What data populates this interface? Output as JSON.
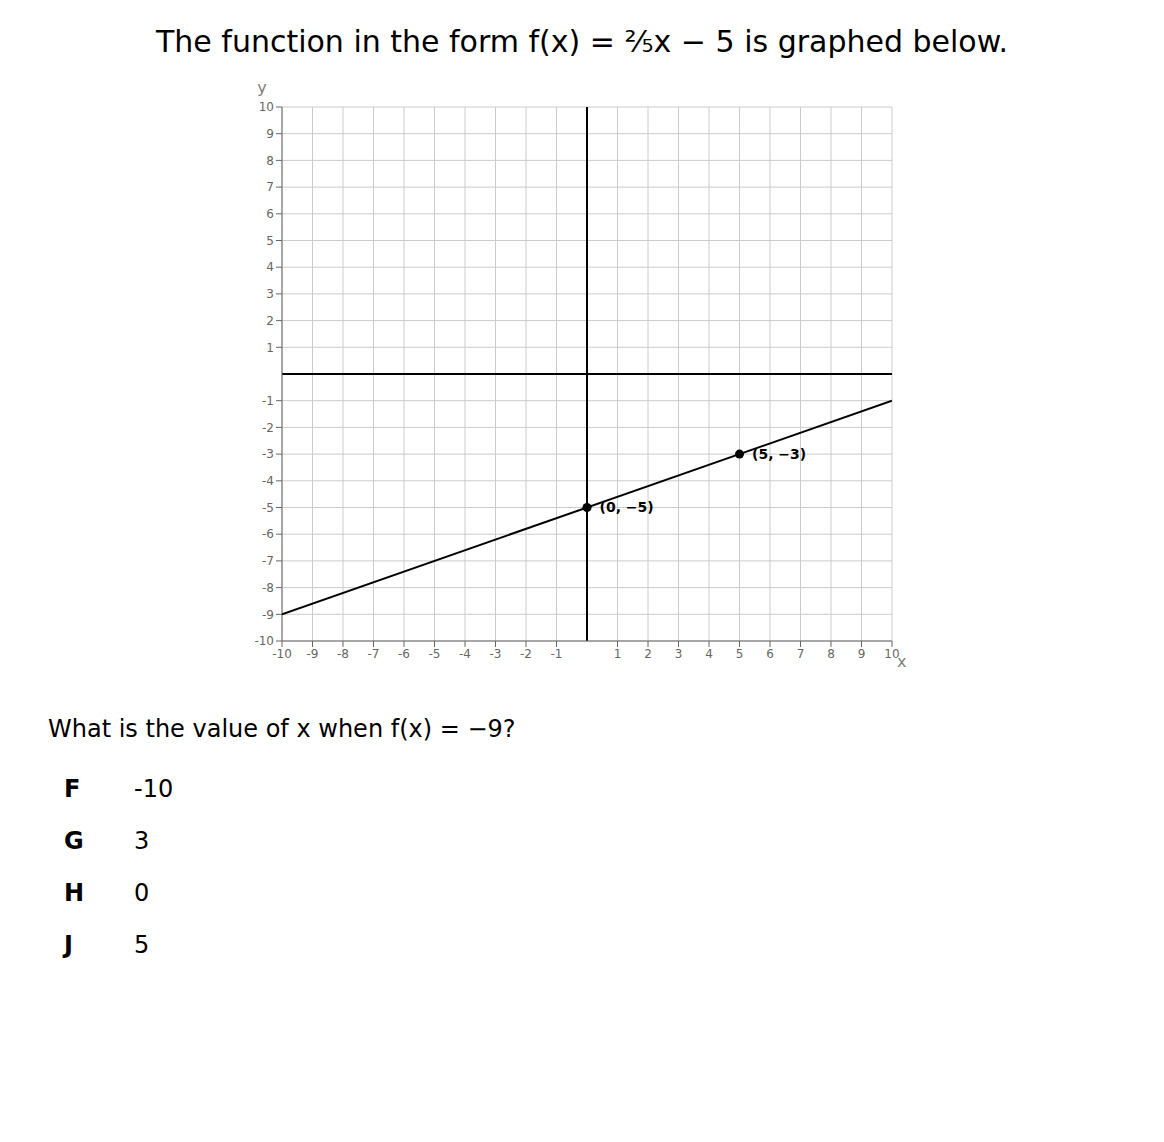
{
  "chart_data": {
    "type": "scatter",
    "title": "The function in the form f(x) = ⅖x − 5 is graphed below.",
    "question": "What is the value of x when f(x) = −9?",
    "choices": [
      {
        "letter": "F",
        "value": "-10"
      },
      {
        "letter": "G",
        "value": "3"
      },
      {
        "letter": "H",
        "value": "0"
      },
      {
        "letter": "J",
        "value": "5"
      }
    ],
    "x_label": "x",
    "y_label": "y",
    "xlim": [
      -10,
      10
    ],
    "ylim": [
      -10,
      10
    ],
    "xticks": [
      -10,
      -9,
      -8,
      -7,
      -6,
      -5,
      -4,
      -3,
      -2,
      -1,
      1,
      2,
      3,
      4,
      5,
      6,
      7,
      8,
      9,
      10
    ],
    "yticks": [
      -10,
      -9,
      -8,
      -7,
      -6,
      -5,
      -4,
      -3,
      -2,
      -1,
      1,
      2,
      3,
      4,
      5,
      6,
      7,
      8,
      9,
      10
    ],
    "grid": true,
    "series": [
      {
        "type": "line",
        "color": "#000000",
        "x": [
          -10,
          10
        ],
        "values": [
          -9,
          -1
        ]
      },
      {
        "type": "scatter",
        "color": "#000000",
        "marker": "circle",
        "x": [
          0,
          5
        ],
        "values": [
          -5,
          -3
        ],
        "value_labels": [
          "(0, −5)",
          "(5, −3)"
        ]
      }
    ]
  }
}
